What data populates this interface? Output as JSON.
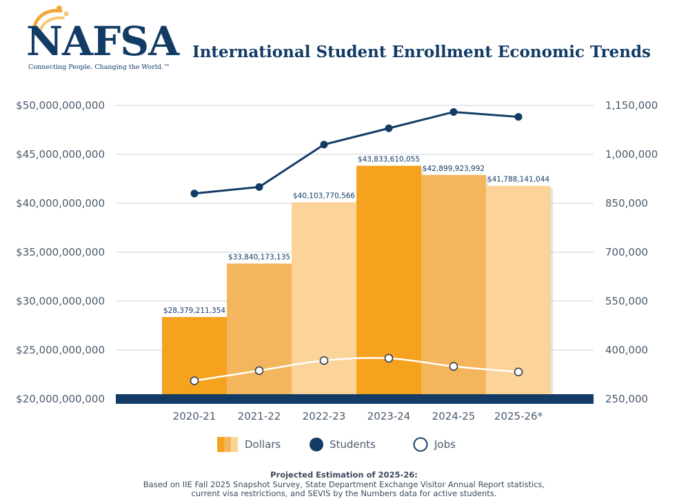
{
  "logo": {
    "name": "NAFSA",
    "tagline": "Connecting People. Changing the World.™"
  },
  "title": "International Student Enrollment Economic Trends",
  "colors": {
    "navy": "#123b66",
    "bar_dark": "#f5a31f",
    "bar_mid": "#f4b65c",
    "bar_light": "#fcd49a",
    "grid": "#c9d0d8"
  },
  "chart_data": {
    "type": "bar",
    "title": "International Student Enrollment Economic Trends",
    "categories": [
      "2020-21",
      "2021-22",
      "2022-23",
      "2023-24",
      "2024-25",
      "2025-26*"
    ],
    "bar_colors": [
      "#f5a31f",
      "#f4b65c",
      "#fcd49a",
      "#f5a31f",
      "#f4b65c",
      "#fcd49a"
    ],
    "series": [
      {
        "name": "Dollars",
        "axis": "left",
        "type": "bar",
        "values": [
          28379211354,
          33840173135,
          40103770566,
          43833610055,
          42899923992,
          41788141044
        ],
        "labels": [
          "$28,379,211,354",
          "$33,840,173,135",
          "$40,103,770,566",
          "$43,833,610,055",
          "$42,899,923,992",
          "$41,788,141,044"
        ]
      },
      {
        "name": "Students",
        "axis": "right",
        "type": "line",
        "values": [
          880000,
          900000,
          1030000,
          1080000,
          1130000,
          1115000
        ]
      },
      {
        "name": "Jobs",
        "axis": "right",
        "type": "line",
        "values": [
          306000,
          337000,
          368000,
          375000,
          350000,
          333000
        ]
      }
    ],
    "left_ticks": [
      "$20,000,000,000",
      "$25,000,000,000",
      "$30,000,000,000",
      "$35,000,000,000",
      "$40,000,000,000",
      "$45,000,000,000",
      "$50,000,000,000"
    ],
    "right_ticks": [
      "250,000",
      "400,000",
      "550,000",
      "700,000",
      "850,000",
      "1,000,000",
      "1,150,000"
    ],
    "ylim_left": [
      20000000000,
      50000000000
    ],
    "ylim_right": [
      250000,
      1150000
    ],
    "grid": true,
    "legend_position": "bottom"
  },
  "legend": {
    "dollars": "Dollars",
    "students": "Students",
    "jobs": "Jobs"
  },
  "footnote": {
    "title": "Projected Estimation of 2025-26:",
    "line1": "Based on IIE Fall 2025 Snapshot Survey, State Department Exchange Visitor Annual Report statistics,",
    "line2": "current visa restrictions, and SEVIS by the Numbers data for active students."
  }
}
